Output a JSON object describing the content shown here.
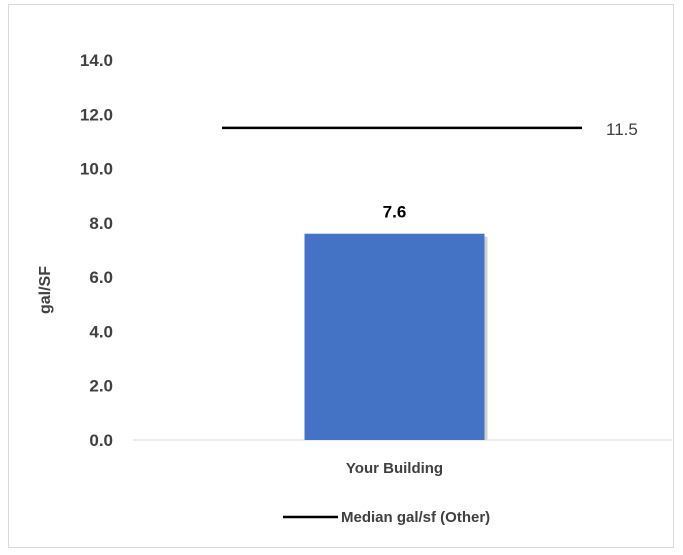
{
  "chart_data": {
    "type": "bar",
    "categories": [
      "Your Building"
    ],
    "series": [
      {
        "values": [
          7.6
        ],
        "color": "#4472C4"
      }
    ],
    "reference_line": {
      "name": "Median gal/sf (Other)",
      "value": 11.5,
      "label": "11.5",
      "color": "#000000"
    },
    "bar_labels": [
      "7.6"
    ],
    "ylabel": "gal/SF",
    "xlabel": "",
    "title": "",
    "ylim": [
      0,
      14
    ],
    "yticks": [
      0,
      2,
      4,
      6,
      8,
      10,
      12,
      14
    ],
    "ytick_labels": [
      "0.0",
      "2.0",
      "4.0",
      "6.0",
      "8.0",
      "10.0",
      "12.0",
      "14.0"
    ],
    "grid": false,
    "legend_position": "bottom"
  }
}
